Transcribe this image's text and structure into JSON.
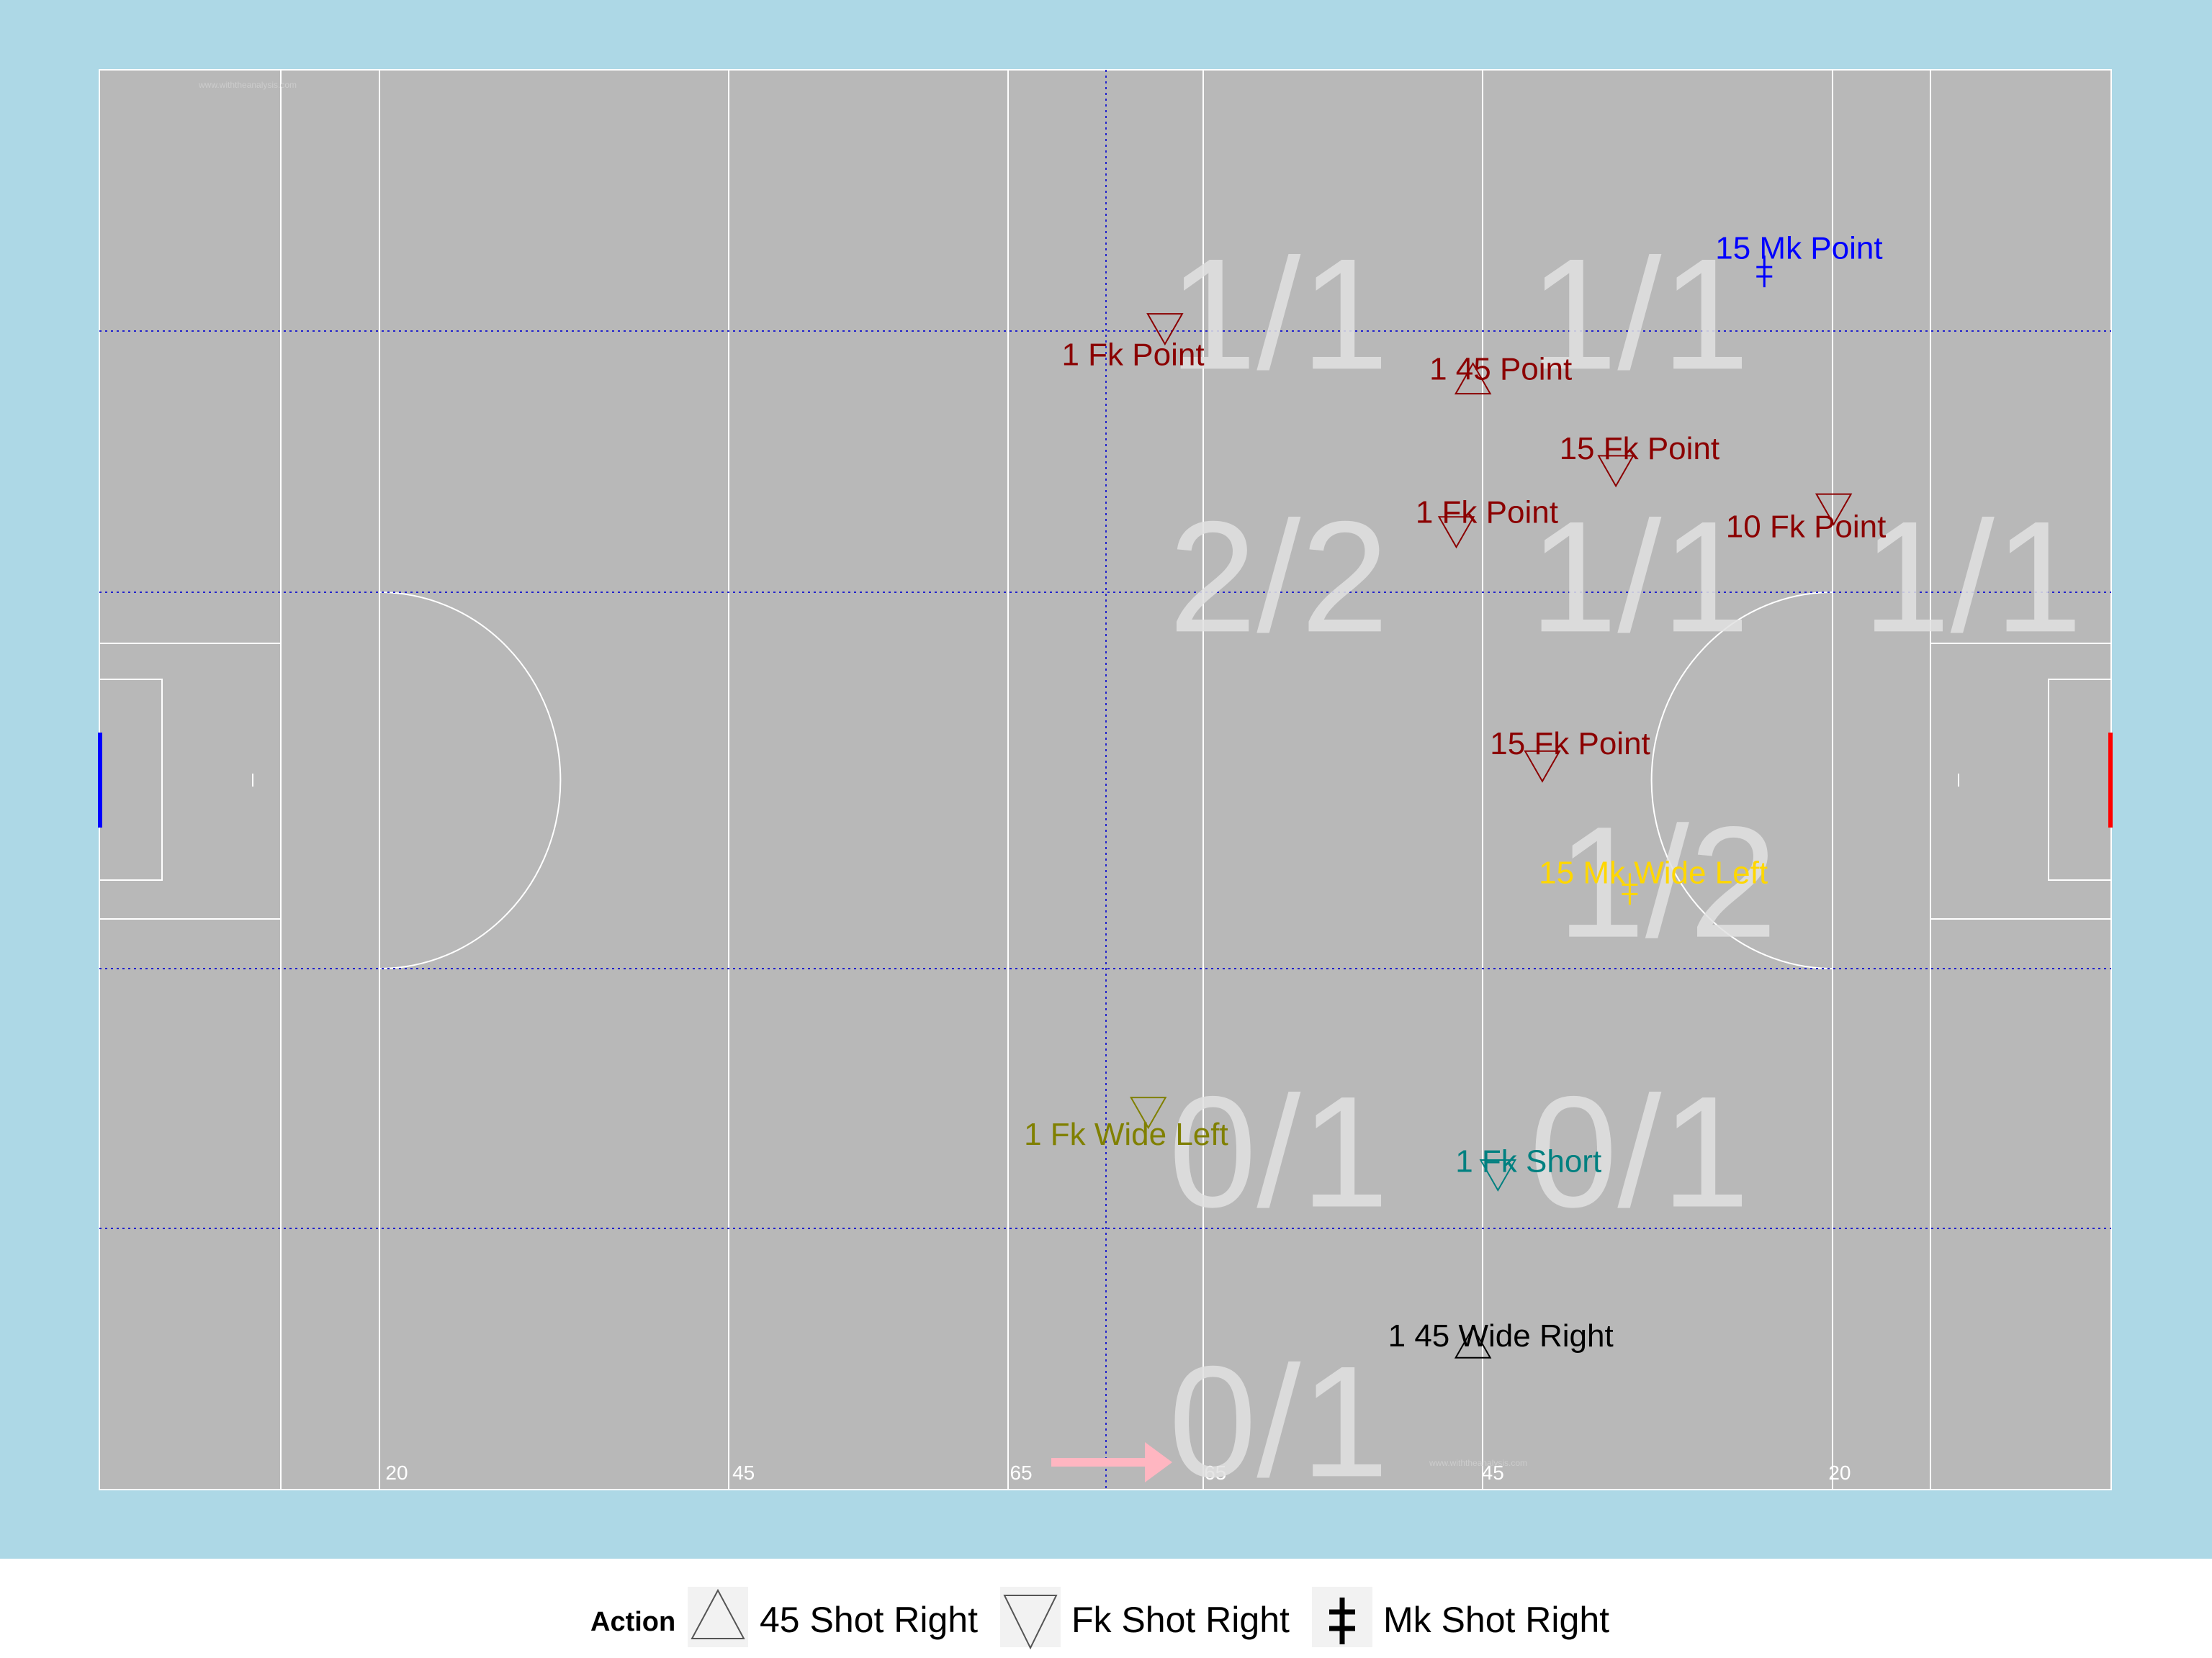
{
  "chart_data": {
    "type": "scatter",
    "title": "",
    "xlabel": "",
    "ylabel": "",
    "xlim": [
      0,
      145
    ],
    "ylim": [
      0,
      100
    ],
    "grid": false,
    "colors": {
      "outer_background": "#add8e6",
      "pitch": "#b8b8b8",
      "pitch_lines": "#ffffff",
      "zone_grid": "#2222cc",
      "zone_counts": "#e0e0e0",
      "direction_arrow": "#ffb6c1",
      "goal_left": "#0000ff",
      "goal_right": "#ff0000"
    },
    "watermark": "www.withtheanalysis.com",
    "distance_labels": [
      {
        "x": 20,
        "label": "20"
      },
      {
        "x": 45,
        "label": "45"
      },
      {
        "x": 65,
        "label": "65"
      },
      {
        "x": 79,
        "label": "65"
      },
      {
        "x": 99,
        "label": "45"
      },
      {
        "x": 124,
        "label": "20"
      }
    ],
    "zone_counts": [
      {
        "x": 85,
        "y": 83,
        "label": "1/1"
      },
      {
        "x": 111,
        "y": 83,
        "label": "1/1"
      },
      {
        "x": 85,
        "y": 64.5,
        "label": "2/2"
      },
      {
        "x": 111,
        "y": 64.5,
        "label": "1/1"
      },
      {
        "x": 135,
        "y": 64.5,
        "label": "1/1"
      },
      {
        "x": 113,
        "y": 43,
        "label": "1/2"
      },
      {
        "x": 85,
        "y": 24,
        "label": "0/1"
      },
      {
        "x": 111,
        "y": 24,
        "label": "0/1"
      },
      {
        "x": 85,
        "y": 5,
        "label": "0/1"
      }
    ],
    "shots": [
      {
        "x": 120,
        "y": 85.8,
        "marker": "mk",
        "label": "15 Mk Point",
        "color": "#0000ff",
        "lx": 122.5,
        "ly": 87.5
      },
      {
        "x": 76.8,
        "y": 81.8,
        "marker": "fk",
        "label": "1 Fk Point",
        "color": "#8b0000",
        "lx": 74.5,
        "ly": 80
      },
      {
        "x": 99,
        "y": 78.2,
        "marker": "45",
        "label": "1 45 Point",
        "color": "#8b0000",
        "lx": 101,
        "ly": 79
      },
      {
        "x": 109.3,
        "y": 71.8,
        "marker": "fk",
        "label": "15 Fk Point",
        "color": "#8b0000",
        "lx": 111,
        "ly": 73.4
      },
      {
        "x": 97.8,
        "y": 67.5,
        "marker": "fk",
        "label": "1 Fk Point",
        "color": "#8b0000",
        "lx": 100,
        "ly": 68.9
      },
      {
        "x": 125,
        "y": 69.1,
        "marker": "fk",
        "label": "10 Fk Point",
        "color": "#8b0000",
        "lx": 123,
        "ly": 67.9
      },
      {
        "x": 104,
        "y": 51,
        "marker": "fk",
        "label": "15 Fk Point",
        "color": "#8b0000",
        "lx": 106,
        "ly": 52.6
      },
      {
        "x": 110.3,
        "y": 42.3,
        "marker": "mk",
        "label": "15 Mk Wide Left",
        "color": "#ffd700",
        "lx": 112,
        "ly": 43.5
      },
      {
        "x": 75.6,
        "y": 26.6,
        "marker": "fk",
        "label": "1 Fk Wide Left",
        "color": "#808000",
        "lx": 74,
        "ly": 25.1
      },
      {
        "x": 100.8,
        "y": 22.2,
        "marker": "fk",
        "label": "1 Fk Short",
        "color": "#008080",
        "lx": 103,
        "ly": 23.2
      },
      {
        "x": 99,
        "y": 10.3,
        "marker": "45",
        "label": "1 45 Wide Right",
        "color": "#000000",
        "lx": 101,
        "ly": 10.9
      }
    ],
    "legend": {
      "title": "Action",
      "position": "bottom",
      "items": [
        {
          "marker": "45",
          "label": "45 Shot Right"
        },
        {
          "marker": "fk",
          "label": "Fk Shot Right"
        },
        {
          "marker": "mk",
          "label": "Mk Shot Right"
        }
      ]
    }
  }
}
